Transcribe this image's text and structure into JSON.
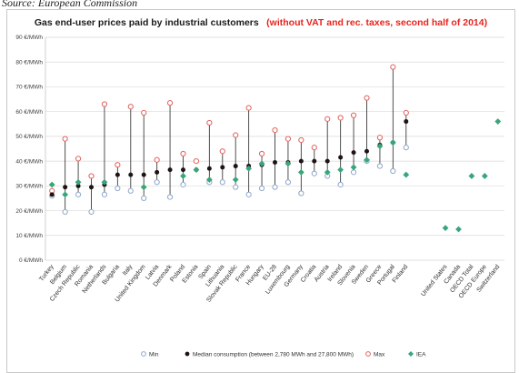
{
  "source_caption": "Source: European Commission",
  "chart_data": {
    "type": "scatter",
    "title": "Gas end-user prices paid by industrial customers",
    "title_note": "(without VAT and rec. taxes, second half of 2014)",
    "xlabel": "",
    "ylabel": "",
    "ylim": [
      0,
      90
    ],
    "y_unit": "€/MWh",
    "y_ticks": [
      0,
      10,
      20,
      30,
      40,
      50,
      60,
      70,
      80,
      90
    ],
    "grid": true,
    "legend_position": "bottom",
    "colors": {
      "min": "#8fa7c9",
      "median": "#1f1414",
      "max": "#e2625c",
      "iea": "#3aa57a"
    },
    "categories": [
      "Turkey",
      "Belgium",
      "Czech Republic",
      "Romania",
      "Netherlands",
      "Bulgaria",
      "Italy",
      "United Kingdom",
      "Latvia",
      "Denmark",
      "Poland",
      "Estonia",
      "Spain",
      "Lithuania",
      "Slovak Republic",
      "France",
      "Hungary",
      "EU-28",
      "Luxembourg",
      "Germany",
      "Croatia",
      "Austria",
      "Ireland",
      "Slovenia",
      "Sweden",
      "Greece",
      "Portugal",
      "Finland",
      "",
      "",
      "United States",
      "Canada",
      "OECD Total",
      "OECD Europe",
      "Switzerland"
    ],
    "series": [
      {
        "name": "Min",
        "values": [
          26,
          19.5,
          26.5,
          19.5,
          26.5,
          29,
          28,
          25,
          31.5,
          25.5,
          30.5,
          null,
          31.5,
          31.5,
          29.5,
          26.5,
          29,
          29.5,
          31.5,
          27,
          35,
          34,
          30.5,
          35.5,
          40,
          38,
          36,
          45.5,
          null,
          null,
          null,
          null,
          null,
          null,
          null
        ]
      },
      {
        "name": "Median consumption (between 2,780 MWh and 27,800 MWh)",
        "values": [
          26.5,
          29.5,
          30,
          29.5,
          30.5,
          34.5,
          34.5,
          34.5,
          35.5,
          36.5,
          36.5,
          36.5,
          37,
          37.5,
          38,
          38,
          38.5,
          39.5,
          39.5,
          40,
          40,
          40,
          41.5,
          43.5,
          44,
          46.5,
          47.5,
          56,
          null,
          null,
          null,
          null,
          null,
          null,
          null
        ]
      },
      {
        "name": "Max",
        "values": [
          28,
          49,
          41,
          34,
          63,
          38.5,
          62,
          59.5,
          40.5,
          63.5,
          43,
          40,
          55.5,
          44,
          50.5,
          61.5,
          43,
          52.5,
          49,
          48.5,
          45.5,
          57,
          57.5,
          58.5,
          65.5,
          49.5,
          78,
          59.5,
          null,
          null,
          null,
          null,
          null,
          null,
          null
        ]
      },
      {
        "name": "IEA",
        "values": [
          30.5,
          26.5,
          31.5,
          null,
          31.5,
          null,
          null,
          29.5,
          null,
          null,
          34,
          36.5,
          32.5,
          null,
          32.5,
          37,
          39,
          null,
          39,
          35.5,
          null,
          35.5,
          36.5,
          37.5,
          40.5,
          46,
          47.5,
          34.5,
          null,
          null,
          13,
          12.5,
          34,
          34,
          56
        ]
      }
    ]
  }
}
